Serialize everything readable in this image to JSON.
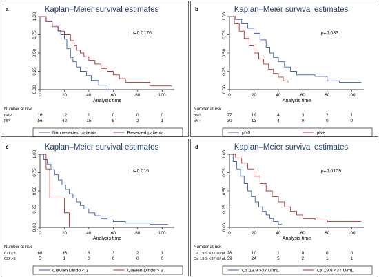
{
  "chart_data": [
    {
      "type": "line",
      "panel": "a",
      "title": "Kaplan–Meier survival estimates",
      "xlabel": "Analysis time",
      "ylabel": "",
      "xlim": [
        0,
        110
      ],
      "ylim": [
        0,
        1
      ],
      "xticks": [
        0,
        20,
        40,
        60,
        80,
        100
      ],
      "yticks": [
        0,
        0.25,
        0.5,
        0.75,
        1
      ],
      "ytick_labels": [
        "0.00",
        "0.25",
        "0.50",
        "0.75",
        "1.00"
      ],
      "p_value": "p=0.0176",
      "risk_table_header": "Number at risk",
      "risk_table": [
        {
          "label": "nRP",
          "values": [
            "16",
            "12",
            "1",
            "0",
            "0",
            "0"
          ]
        },
        {
          "label": "RP",
          "values": [
            "56",
            "42",
            "15",
            "5",
            "2",
            "1"
          ]
        }
      ],
      "legend": [
        "Non resected patients",
        "Resected patients"
      ],
      "series": [
        {
          "name": "Non resected patients",
          "color": "#3b5bab",
          "x": [
            0,
            5,
            10,
            14,
            17,
            20,
            22,
            25,
            27,
            30,
            33,
            38,
            42,
            48,
            55,
            60
          ],
          "y": [
            1.0,
            0.94,
            0.88,
            0.81,
            0.75,
            0.69,
            0.56,
            0.44,
            0.38,
            0.31,
            0.25,
            0.19,
            0.125,
            0.06,
            0.0,
            0.0
          ]
        },
        {
          "name": "Resected patients",
          "color": "#b03030",
          "x": [
            0,
            5,
            10,
            15,
            20,
            25,
            28,
            30,
            33,
            36,
            40,
            45,
            50,
            55,
            60,
            65,
            70,
            80,
            90,
            100,
            108
          ],
          "y": [
            1.0,
            0.93,
            0.86,
            0.8,
            0.75,
            0.67,
            0.6,
            0.54,
            0.5,
            0.45,
            0.4,
            0.35,
            0.29,
            0.25,
            0.2,
            0.15,
            0.1,
            0.1,
            0.05,
            0.05,
            0.05
          ]
        }
      ]
    },
    {
      "type": "line",
      "panel": "b",
      "title": "Kaplan–Meier survival estimates",
      "xlabel": "Analysis time",
      "ylabel": "",
      "xlim": [
        0,
        110
      ],
      "ylim": [
        0,
        1
      ],
      "xticks": [
        0,
        20,
        40,
        60,
        80,
        100
      ],
      "yticks": [
        0,
        0.25,
        0.5,
        0.75,
        1
      ],
      "ytick_labels": [
        "0.00",
        "0.25",
        "0.50",
        "0.75",
        "1.00"
      ],
      "p_value": "p=0.033",
      "risk_table_header": "Number at risk",
      "risk_table": [
        {
          "label": "pN0",
          "values": [
            "27",
            "19",
            "4",
            "3",
            "2",
            "1"
          ]
        },
        {
          "label": "pN+",
          "values": [
            "30",
            "13",
            "4",
            "0",
            "0",
            "0"
          ]
        }
      ],
      "legend": [
        "pN0",
        "pN+"
      ],
      "series": [
        {
          "name": "pN0",
          "color": "#3b5bab",
          "x": [
            0,
            5,
            10,
            15,
            20,
            25,
            30,
            33,
            36,
            40,
            45,
            50,
            55,
            60,
            70,
            80,
            90,
            100,
            108
          ],
          "y": [
            1.0,
            0.96,
            0.9,
            0.84,
            0.77,
            0.68,
            0.58,
            0.5,
            0.44,
            0.38,
            0.31,
            0.25,
            0.2,
            0.2,
            0.18,
            0.12,
            0.1,
            0.1,
            0.1
          ]
        },
        {
          "name": "pN+",
          "color": "#b03030",
          "x": [
            0,
            4,
            8,
            12,
            16,
            20,
            24,
            28,
            32,
            36,
            40,
            44,
            48
          ],
          "y": [
            1.0,
            0.9,
            0.8,
            0.7,
            0.6,
            0.5,
            0.42,
            0.35,
            0.28,
            0.22,
            0.17,
            0.12,
            0.1
          ]
        }
      ]
    },
    {
      "type": "line",
      "panel": "c",
      "title": "Kaplan–Meier survival estimates",
      "xlabel": "Analysis time",
      "ylabel": "",
      "xlim": [
        0,
        110
      ],
      "ylim": [
        0,
        1
      ],
      "xticks": [
        0,
        20,
        40,
        60,
        80,
        100
      ],
      "yticks": [
        0,
        0.25,
        0.5,
        0.75,
        1
      ],
      "ytick_labels": [
        "0.00",
        "0.25",
        "0.50",
        "0.75",
        "1.00"
      ],
      "p_value": "p=0.016",
      "risk_table_header": "Number at risk",
      "risk_table": [
        {
          "label": "CD <3",
          "values": [
            "68",
            "36",
            "8",
            "3",
            "2",
            "1"
          ]
        },
        {
          "label": "CD >3",
          "values": [
            "5",
            "1",
            "0",
            "0",
            "0",
            "0"
          ]
        }
      ],
      "legend": [
        "Clavien Dindo < 3",
        "Clavien Dindo > 3"
      ],
      "series": [
        {
          "name": "Clavien Dindo < 3",
          "color": "#3b5bab",
          "x": [
            0,
            3,
            6,
            9,
            12,
            15,
            18,
            21,
            24,
            27,
            30,
            33,
            36,
            40,
            45,
            50,
            55,
            60,
            70,
            80,
            90,
            100,
            105
          ],
          "y": [
            1.0,
            0.93,
            0.86,
            0.79,
            0.72,
            0.65,
            0.58,
            0.52,
            0.46,
            0.4,
            0.35,
            0.3,
            0.25,
            0.2,
            0.16,
            0.12,
            0.1,
            0.08,
            0.06,
            0.06,
            0.04,
            0.04,
            0.04
          ]
        },
        {
          "name": "Clavien Dindo > 3",
          "color": "#b03030",
          "x": [
            0,
            5,
            8,
            15,
            20,
            24
          ],
          "y": [
            1.0,
            0.8,
            0.4,
            0.4,
            0.2,
            0.0
          ]
        }
      ]
    },
    {
      "type": "line",
      "panel": "d",
      "title": "Kaplan–Meier survival estimates",
      "xlabel": "Analysis time",
      "ylabel": "",
      "xlim": [
        0,
        110
      ],
      "ylim": [
        0,
        1
      ],
      "xticks": [
        0,
        20,
        40,
        60,
        80,
        100
      ],
      "yticks": [
        0,
        0.25,
        0.5,
        0.75,
        1
      ],
      "ytick_labels": [
        "0.00",
        "0.25",
        "0.50",
        "0.75",
        "1.00"
      ],
      "p_value": "p=0.0109",
      "risk_table_header": "Number at risk",
      "risk_table": [
        {
          "label": "Ca 19.9 >37 U/mL",
          "values": [
            "28",
            "10",
            "1",
            "0",
            "0",
            "0"
          ]
        },
        {
          "label": "Ca 19.9 <37 U/mL",
          "values": [
            "39",
            "24",
            "5",
            "2",
            "1",
            "1"
          ]
        }
      ],
      "legend": [
        "Ca 19.9 >37 U/mL",
        "Ca 19.9 <37 U/mL"
      ],
      "series": [
        {
          "name": "Ca 19.9 >37 U/mL",
          "color": "#3b5bab",
          "x": [
            0,
            3,
            6,
            9,
            12,
            15,
            18,
            21,
            24,
            27,
            30,
            33,
            36,
            40,
            43
          ],
          "y": [
            1.0,
            0.9,
            0.8,
            0.7,
            0.6,
            0.5,
            0.42,
            0.35,
            0.28,
            0.22,
            0.17,
            0.12,
            0.08,
            0.04,
            0.04
          ]
        },
        {
          "name": "Ca 19.9 <37 U/mL",
          "color": "#b03030",
          "x": [
            0,
            5,
            10,
            15,
            20,
            25,
            30,
            35,
            40,
            45,
            50,
            55,
            60,
            70,
            80,
            90,
            100,
            108
          ],
          "y": [
            1.0,
            0.95,
            0.88,
            0.8,
            0.7,
            0.6,
            0.5,
            0.42,
            0.35,
            0.28,
            0.22,
            0.17,
            0.12,
            0.1,
            0.08,
            0.08,
            0.08,
            0.08
          ]
        }
      ]
    }
  ]
}
